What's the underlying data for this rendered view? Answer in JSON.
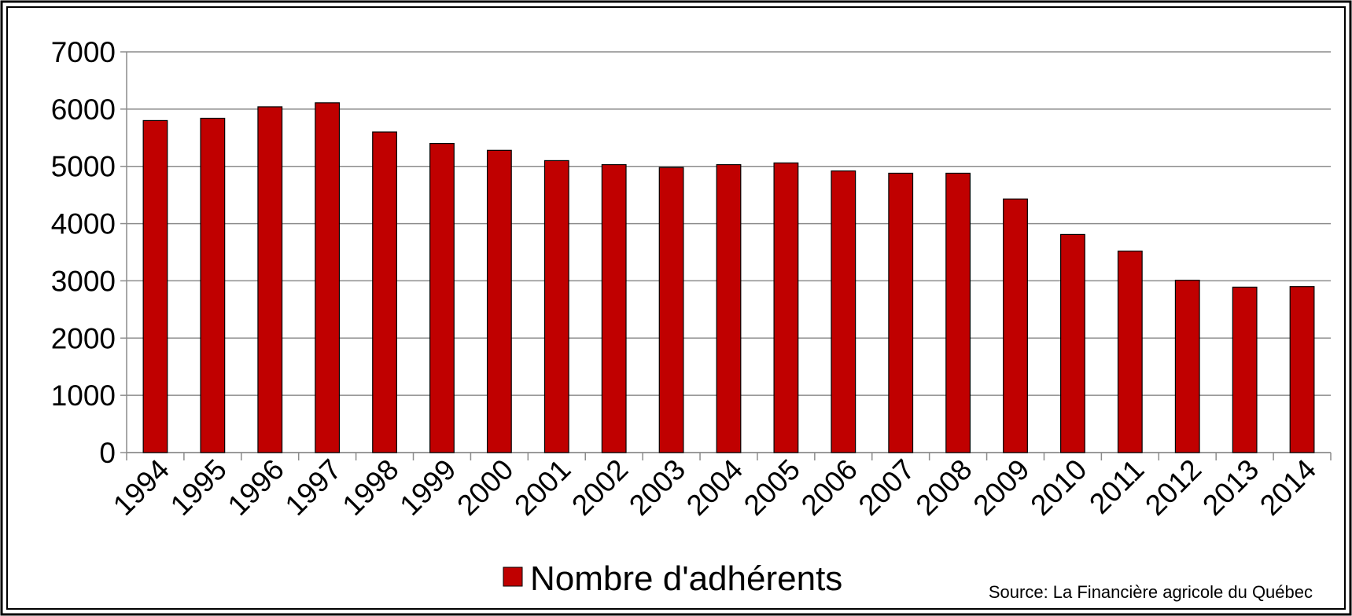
{
  "chart_data": {
    "type": "bar",
    "categories": [
      "1994",
      "1995",
      "1996",
      "1997",
      "1998",
      "1999",
      "2000",
      "2001",
      "2002",
      "2003",
      "2004",
      "2005",
      "2006",
      "2007",
      "2008",
      "2009",
      "2010",
      "2011",
      "2012",
      "2013",
      "2014"
    ],
    "series": [
      {
        "name": "Nombre d'adhérents",
        "color": "#c00000",
        "values": [
          5800,
          5840,
          6040,
          6110,
          5600,
          5400,
          5280,
          5100,
          5030,
          4980,
          5030,
          5060,
          4920,
          4880,
          4880,
          4430,
          3810,
          3520,
          3010,
          2890,
          2900
        ]
      }
    ],
    "ylim": [
      0,
      7000
    ],
    "yticks": [
      0,
      1000,
      2000,
      3000,
      4000,
      5000,
      6000,
      7000
    ],
    "grid": true,
    "legend": "bottom",
    "annotations": [
      "Source: La Financière agricole du Québec"
    ]
  }
}
